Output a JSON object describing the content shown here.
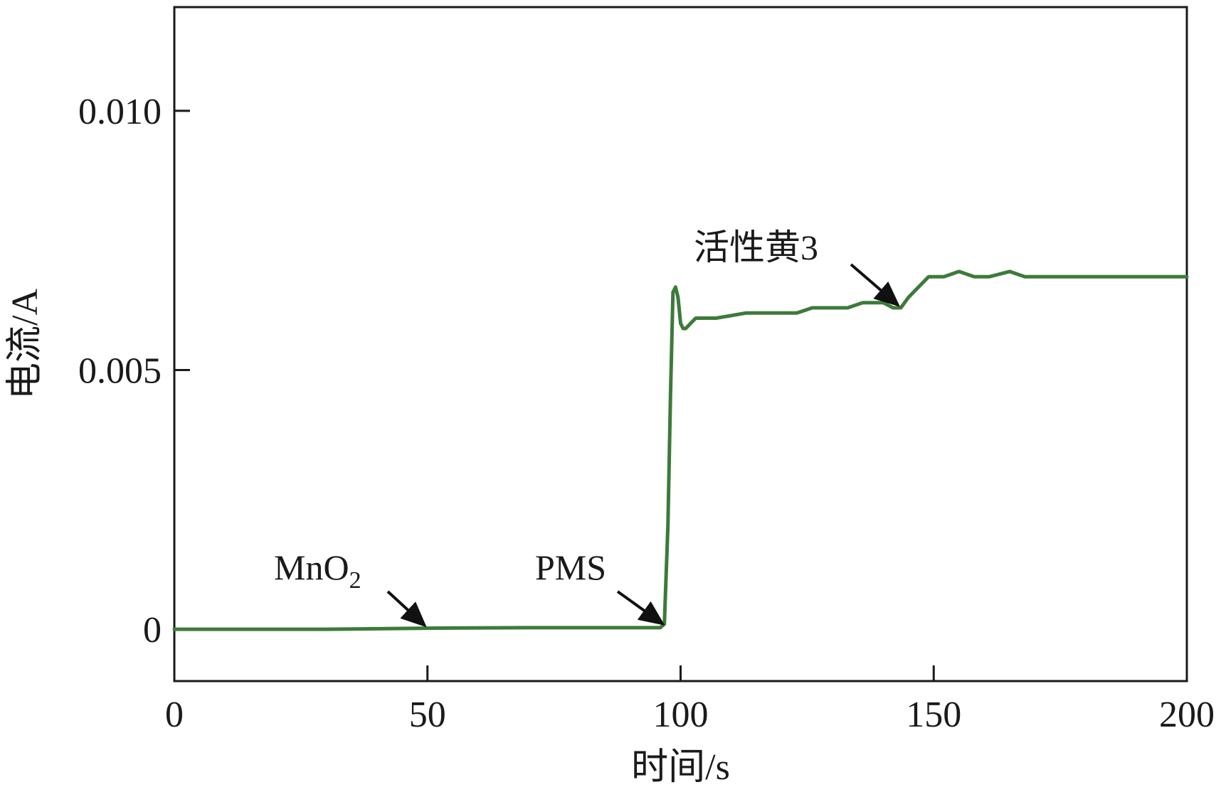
{
  "chart_data": {
    "type": "line",
    "title": "",
    "xlabel": "时间/s",
    "ylabel": "电流/A",
    "xlim": [
      0,
      200
    ],
    "ylim": [
      -0.001,
      0.012
    ],
    "x_ticks": [
      0,
      50,
      100,
      150,
      200
    ],
    "x_tick_labels": [
      "0",
      "50",
      "100",
      "150",
      "200"
    ],
    "y_ticks": [
      0,
      0.005,
      0.01
    ],
    "y_tick_labels": [
      "0",
      "0.005",
      "0.010"
    ],
    "grid": false,
    "legend": "none",
    "series": [
      {
        "color": "#3d7a3a",
        "x": [
          0,
          30,
          50,
          70,
          96,
          96.8,
          97.5,
          98,
          98.5,
          99,
          99.5,
          100,
          100.5,
          101,
          102,
          103,
          104,
          105,
          107,
          110,
          113,
          116,
          120,
          123,
          126,
          130,
          133,
          136,
          140,
          142,
          143.5,
          145,
          147,
          149,
          150,
          152,
          155,
          158,
          161,
          165,
          168,
          171,
          175,
          178,
          181,
          185,
          188,
          191,
          195,
          198,
          200
        ],
        "y": [
          0,
          0,
          2e-05,
          3e-05,
          3e-05,
          0.0001,
          0.002,
          0.0045,
          0.0065,
          0.0066,
          0.0064,
          0.0059,
          0.0058,
          0.0058,
          0.0059,
          0.006,
          0.006,
          0.006,
          0.006,
          0.00605,
          0.0061,
          0.0061,
          0.0061,
          0.0061,
          0.0062,
          0.0062,
          0.0062,
          0.0063,
          0.0063,
          0.0062,
          0.0062,
          0.0064,
          0.0066,
          0.0068,
          0.0068,
          0.0068,
          0.0069,
          0.0068,
          0.0068,
          0.0069,
          0.0068,
          0.0068,
          0.0068,
          0.0068,
          0.0068,
          0.0068,
          0.0068,
          0.0068,
          0.0068,
          0.0068,
          0.0068
        ]
      }
    ],
    "annotations": [
      {
        "text": "MnO",
        "subscript": "2",
        "target": [
          50,
          2e-05
        ]
      },
      {
        "text": "PMS",
        "target": [
          97,
          5e-05
        ]
      },
      {
        "text": "活性黄3",
        "target": [
          143.5,
          0.0062
        ]
      }
    ]
  }
}
